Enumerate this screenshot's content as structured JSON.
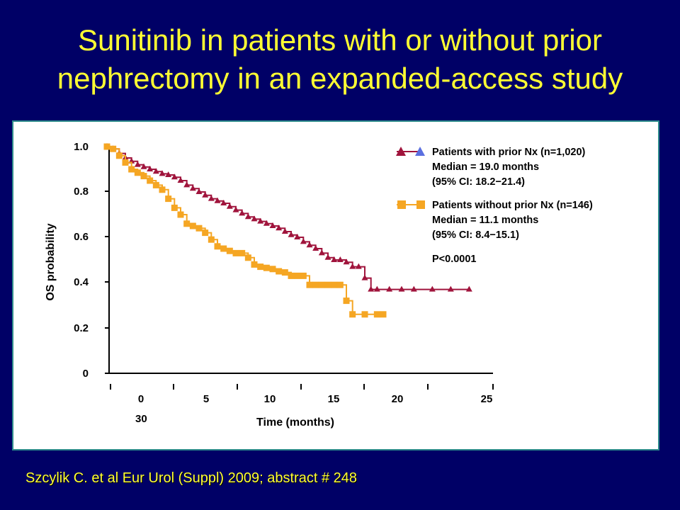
{
  "slide": {
    "title_line1": "Sunitinib in patients with or without prior",
    "title_line2": "nephrectomy in an expanded-access study",
    "reference": "Szcylik C. et al Eur Urol (Suppl) 2009; abstract # 248"
  },
  "colors": {
    "background": "#000066",
    "title": "#FFFF33",
    "with_nx": "#A0143C",
    "without_nx": "#F5A623",
    "legend_triangle_alt": "#5B6FE0"
  },
  "chart_data": {
    "type": "line",
    "step": true,
    "ylabel": "OS probability",
    "xlabel": "Time (months)",
    "yticks": [
      "1.0",
      "0.8",
      "0.6",
      "0.4",
      "0.2",
      "0"
    ],
    "ytick_values": [
      1.0,
      0.8,
      0.6,
      0.4,
      0.2,
      0
    ],
    "xticks": [
      "0",
      "5",
      "10",
      "15",
      "20",
      "25"
    ],
    "xtick_values": [
      0,
      5,
      10,
      15,
      20,
      25
    ],
    "xtick_extra": "30",
    "xlim": [
      0,
      30
    ],
    "ylim": [
      0,
      1.0
    ],
    "grid": false,
    "legend_position": "top-right",
    "series": [
      {
        "key": "with_nx",
        "marker": "triangle",
        "legend_line1": "Patients with prior Nx (n=1,020)",
        "legend_line2": "Median = 19.0 months",
        "legend_line3": "(95% CI: 18.2−21.4)",
        "points": [
          [
            0,
            1.0
          ],
          [
            0.5,
            0.99
          ],
          [
            1,
            0.97
          ],
          [
            1.5,
            0.95
          ],
          [
            2,
            0.935
          ],
          [
            2.5,
            0.92
          ],
          [
            3,
            0.91
          ],
          [
            3.5,
            0.9
          ],
          [
            4,
            0.89
          ],
          [
            4.5,
            0.88
          ],
          [
            5,
            0.875
          ],
          [
            5.5,
            0.865
          ],
          [
            6,
            0.85
          ],
          [
            6.5,
            0.83
          ],
          [
            7,
            0.815
          ],
          [
            7.5,
            0.8
          ],
          [
            8,
            0.785
          ],
          [
            8.5,
            0.77
          ],
          [
            9,
            0.76
          ],
          [
            9.5,
            0.75
          ],
          [
            10,
            0.735
          ],
          [
            10.5,
            0.72
          ],
          [
            11,
            0.705
          ],
          [
            11.5,
            0.69
          ],
          [
            12,
            0.68
          ],
          [
            12.5,
            0.67
          ],
          [
            13,
            0.66
          ],
          [
            13.5,
            0.65
          ],
          [
            14,
            0.64
          ],
          [
            14.5,
            0.625
          ],
          [
            15,
            0.61
          ],
          [
            15.5,
            0.6
          ],
          [
            16,
            0.58
          ],
          [
            16.5,
            0.565
          ],
          [
            17,
            0.55
          ],
          [
            17.5,
            0.53
          ],
          [
            18,
            0.51
          ],
          [
            18.5,
            0.5
          ],
          [
            19,
            0.5
          ],
          [
            19.5,
            0.49
          ],
          [
            20,
            0.47
          ],
          [
            20.5,
            0.47
          ],
          [
            21,
            0.42
          ],
          [
            21.5,
            0.37
          ],
          [
            22,
            0.37
          ],
          [
            23,
            0.37
          ],
          [
            24,
            0.37
          ],
          [
            25,
            0.37
          ],
          [
            26.5,
            0.37
          ],
          [
            28,
            0.37
          ],
          [
            29.5,
            0.37
          ]
        ]
      },
      {
        "key": "without_nx",
        "marker": "square",
        "legend_line1": "Patients without prior Nx (n=146)",
        "legend_line2": "Median = 11.1 months",
        "legend_line3": "(95% CI: 8.4−15.1)",
        "points": [
          [
            0,
            1.0
          ],
          [
            0.5,
            0.99
          ],
          [
            1,
            0.96
          ],
          [
            1.5,
            0.93
          ],
          [
            2,
            0.9
          ],
          [
            2.5,
            0.885
          ],
          [
            3,
            0.87
          ],
          [
            3.5,
            0.85
          ],
          [
            4,
            0.83
          ],
          [
            4.5,
            0.81
          ],
          [
            5,
            0.77
          ],
          [
            5.5,
            0.73
          ],
          [
            6,
            0.7
          ],
          [
            6.5,
            0.66
          ],
          [
            7,
            0.65
          ],
          [
            7.5,
            0.64
          ],
          [
            8,
            0.62
          ],
          [
            8.5,
            0.59
          ],
          [
            9,
            0.56
          ],
          [
            9.5,
            0.55
          ],
          [
            10,
            0.54
          ],
          [
            10.5,
            0.53
          ],
          [
            11,
            0.53
          ],
          [
            11.5,
            0.51
          ],
          [
            12,
            0.48
          ],
          [
            12.5,
            0.47
          ],
          [
            13,
            0.465
          ],
          [
            13.5,
            0.46
          ],
          [
            14,
            0.45
          ],
          [
            14.5,
            0.445
          ],
          [
            15,
            0.43
          ],
          [
            15.5,
            0.43
          ],
          [
            16,
            0.43
          ],
          [
            16.5,
            0.39
          ],
          [
            17,
            0.39
          ],
          [
            17.5,
            0.39
          ],
          [
            18,
            0.39
          ],
          [
            18.5,
            0.39
          ],
          [
            19,
            0.39
          ],
          [
            19.5,
            0.32
          ],
          [
            20,
            0.26
          ],
          [
            21,
            0.26
          ],
          [
            22,
            0.26
          ],
          [
            22.5,
            0.26
          ]
        ]
      }
    ],
    "pvalue": "P<0.0001"
  }
}
